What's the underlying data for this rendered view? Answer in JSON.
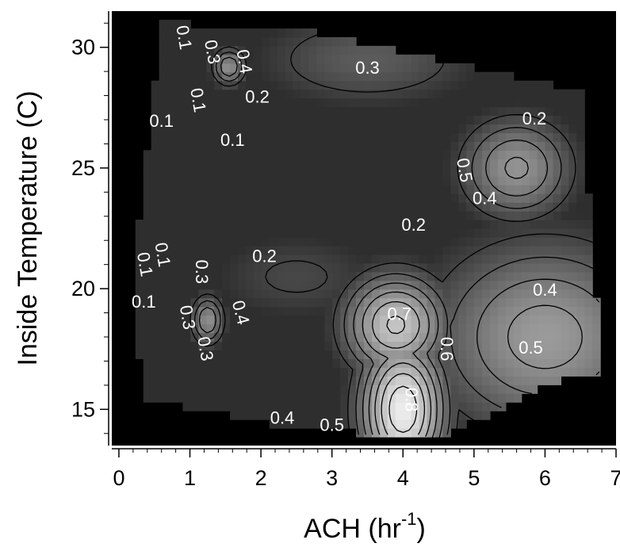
{
  "chart_data": {
    "type": "heatmap",
    "title": "",
    "xlabel": {
      "base": "ACH (hr",
      "sup": "-1",
      "end": ")"
    },
    "ylabel": "Inside Temperature (C)",
    "xlim": [
      -0.1,
      7
    ],
    "ylim": [
      13.5,
      31.5
    ],
    "x_ticks": [
      0,
      1,
      2,
      3,
      4,
      5,
      6,
      7
    ],
    "x_tick_labels": [
      "0",
      "1",
      "2",
      "3",
      "4",
      "5",
      "6",
      "7"
    ],
    "y_ticks": [
      15,
      20,
      25,
      30
    ],
    "y_tick_labels": [
      "15",
      "20",
      "25",
      "30"
    ],
    "colormap": {
      "low": "#101010",
      "high": "#f2f2f2",
      "value_range": [
        0,
        0.9
      ]
    },
    "background_color": "#000000",
    "data_region": [
      [
        0.6,
        31.0
      ],
      [
        2.5,
        30.8
      ],
      [
        6.5,
        28.2
      ],
      [
        6.8,
        16.5
      ],
      [
        6.2,
        16.2
      ],
      [
        5.0,
        14.5
      ],
      [
        4.5,
        13.8
      ],
      [
        2.5,
        14.2
      ],
      [
        0.3,
        15.5
      ],
      [
        0.25,
        22.0
      ]
    ],
    "peaks": [
      {
        "x": 4.0,
        "y": 15.0,
        "value": 0.88,
        "spread": [
          0.45,
          2.2
        ]
      },
      {
        "x": 3.9,
        "y": 18.5,
        "value": 0.72,
        "spread": [
          0.55,
          1.6
        ]
      },
      {
        "x": 6.0,
        "y": 18.0,
        "value": 0.55,
        "spread": [
          1.2,
          3.0
        ]
      },
      {
        "x": 5.6,
        "y": 25.0,
        "value": 0.52,
        "spread": [
          0.6,
          1.6
        ]
      },
      {
        "x": 1.25,
        "y": 18.7,
        "value": 0.5,
        "spread": [
          0.18,
          0.8
        ]
      },
      {
        "x": 1.55,
        "y": 29.2,
        "value": 0.5,
        "spread": [
          0.18,
          0.6
        ]
      },
      {
        "x": 3.5,
        "y": 29.5,
        "value": 0.3,
        "spread": [
          1.2,
          1.5
        ]
      },
      {
        "x": 2.5,
        "y": 20.5,
        "value": 0.22,
        "spread": [
          1.0,
          1.5
        ]
      }
    ],
    "base_value": 0.12,
    "contour_labels": [
      {
        "text": "0.1",
        "x": 0.9,
        "y": 30.4,
        "angle": 80
      },
      {
        "text": "0.3",
        "x": 1.3,
        "y": 29.8,
        "angle": 80
      },
      {
        "text": "0.4",
        "x": 1.75,
        "y": 29.4,
        "angle": 80
      },
      {
        "text": "0.1",
        "x": 1.1,
        "y": 27.8,
        "angle": 80
      },
      {
        "text": "0.2",
        "x": 1.95,
        "y": 27.9,
        "angle": 0
      },
      {
        "text": "0.1",
        "x": 0.6,
        "y": 26.9,
        "angle": 0
      },
      {
        "text": "0.1",
        "x": 1.6,
        "y": 26.1,
        "angle": 0
      },
      {
        "text": "0.3",
        "x": 3.5,
        "y": 29.1,
        "angle": 0
      },
      {
        "text": "0.2",
        "x": 5.85,
        "y": 27.0,
        "angle": 0
      },
      {
        "text": "0.5",
        "x": 4.85,
        "y": 24.9,
        "angle": 80
      },
      {
        "text": "0.4",
        "x": 5.15,
        "y": 23.7,
        "angle": 0
      },
      {
        "text": "0.2",
        "x": 4.15,
        "y": 22.6,
        "angle": 0
      },
      {
        "text": "0.2",
        "x": 2.05,
        "y": 21.3,
        "angle": 0
      },
      {
        "text": "0.1",
        "x": 0.6,
        "y": 21.4,
        "angle": 80
      },
      {
        "text": "0.1",
        "x": 0.35,
        "y": 21.0,
        "angle": 80
      },
      {
        "text": "0.3",
        "x": 1.15,
        "y": 20.7,
        "angle": 90
      },
      {
        "text": "0.1",
        "x": 0.35,
        "y": 19.4,
        "angle": 0
      },
      {
        "text": "0.3",
        "x": 0.95,
        "y": 18.8,
        "angle": 80
      },
      {
        "text": "0.4",
        "x": 1.7,
        "y": 19.0,
        "angle": 75
      },
      {
        "text": "0.3",
        "x": 1.2,
        "y": 17.5,
        "angle": 80
      },
      {
        "text": "0.7",
        "x": 3.95,
        "y": 18.9,
        "angle": 0
      },
      {
        "text": "0.6",
        "x": 4.6,
        "y": 17.5,
        "angle": 90
      },
      {
        "text": "0.5",
        "x": 5.8,
        "y": 17.5,
        "angle": 0
      },
      {
        "text": "0.4",
        "x": 6.0,
        "y": 19.9,
        "angle": 0
      },
      {
        "text": "0.8",
        "x": 4.1,
        "y": 15.4,
        "angle": 90
      },
      {
        "text": "0.4",
        "x": 2.3,
        "y": 14.6,
        "angle": 0
      },
      {
        "text": "0.5",
        "x": 3.0,
        "y": 14.3,
        "angle": 0
      }
    ]
  }
}
